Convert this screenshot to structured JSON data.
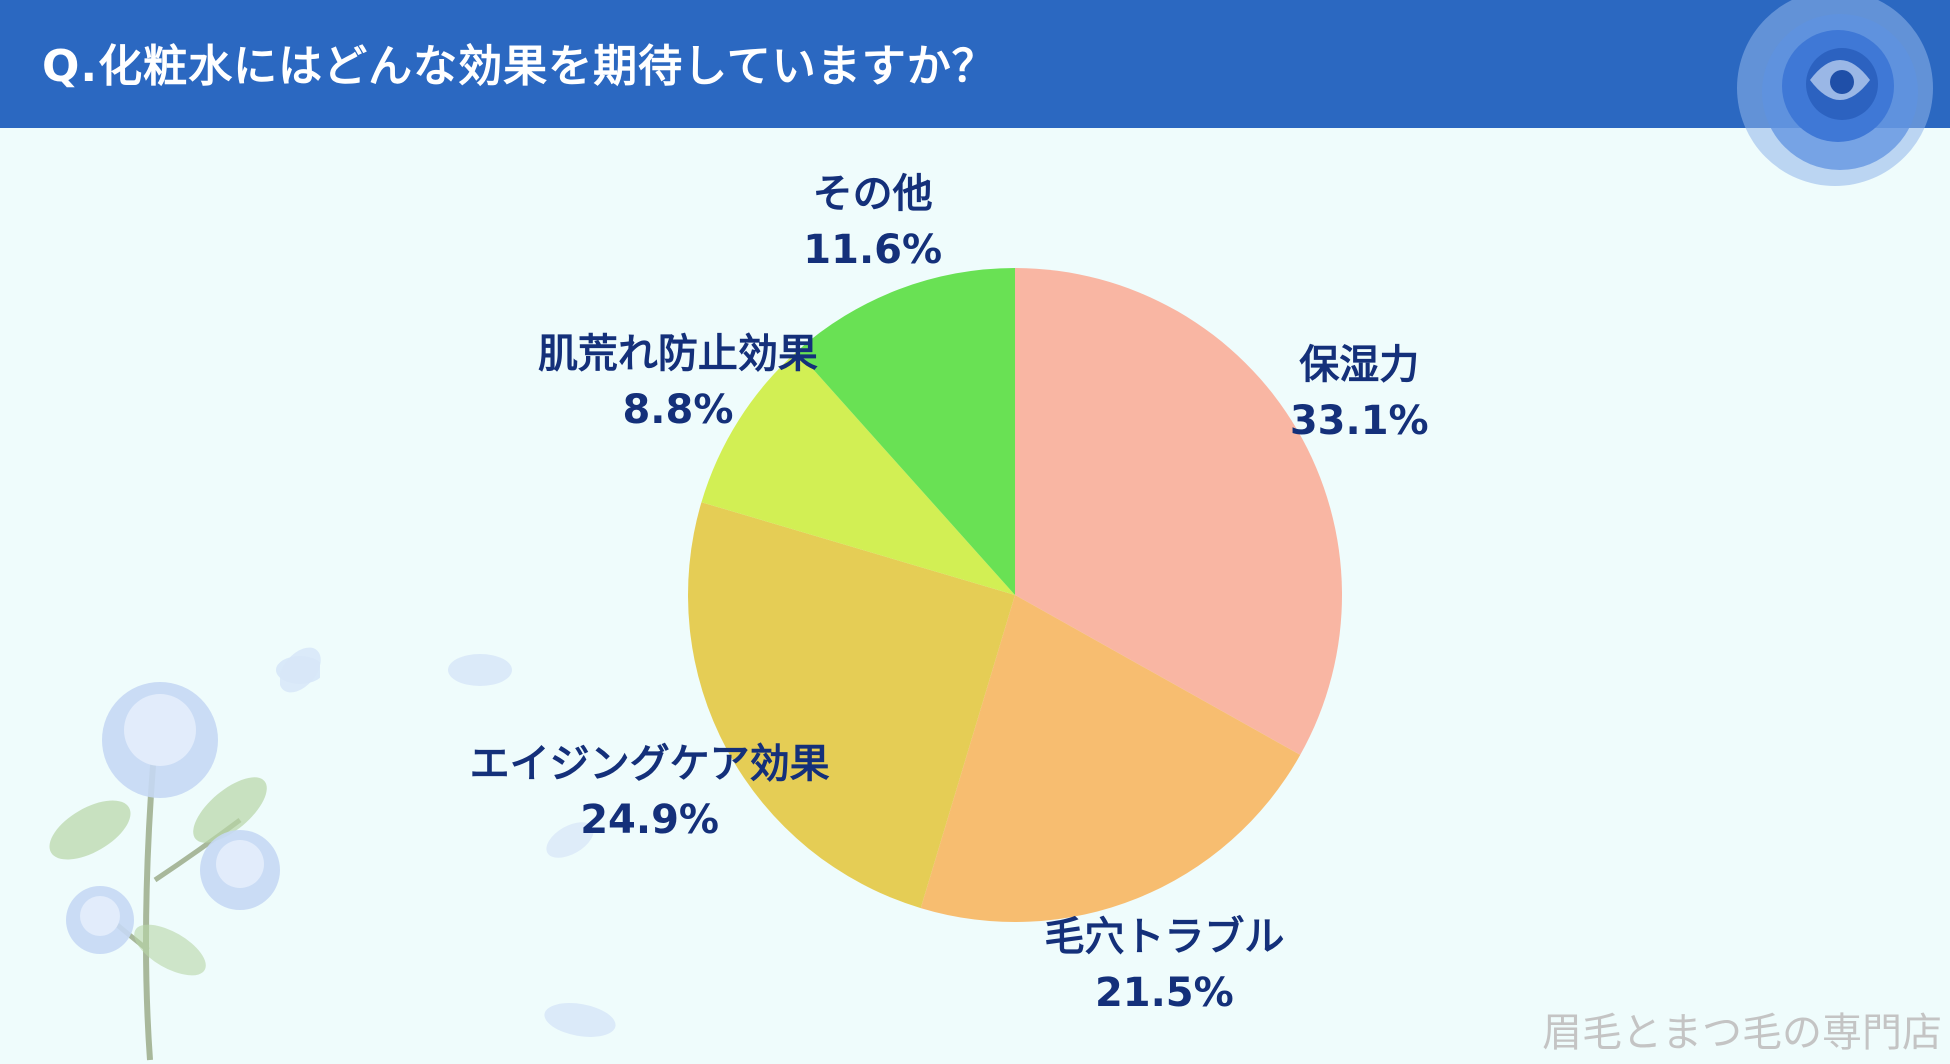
{
  "header": {
    "title": "Q.化粧水にはどんな効果を期待していますか？"
  },
  "watermark": "眉毛とまつ毛の専門店",
  "colors": {
    "header_bg": "#2b68c1",
    "background": "#effcfc",
    "label_text": "#14307a"
  },
  "chart_data": {
    "type": "pie",
    "start_angle_deg": 0,
    "direction": "clockwise",
    "slices": [
      {
        "label": "保湿力",
        "value": 33.1,
        "display": "33.1%",
        "color": "#f9b6a3"
      },
      {
        "label": "毛穴トラブル",
        "value": 21.5,
        "display": "21.5%",
        "color": "#f7bd70"
      },
      {
        "label": "エイジングケア効果",
        "value": 24.9,
        "display": "24.9%",
        "color": "#e5cd55"
      },
      {
        "label": "肌荒れ防止効果",
        "value": 8.8,
        "display": "8.8%",
        "color": "#d2ef54"
      },
      {
        "label": "その他",
        "value": 11.6,
        "display": "11.6%",
        "color": "#69e154"
      }
    ]
  }
}
